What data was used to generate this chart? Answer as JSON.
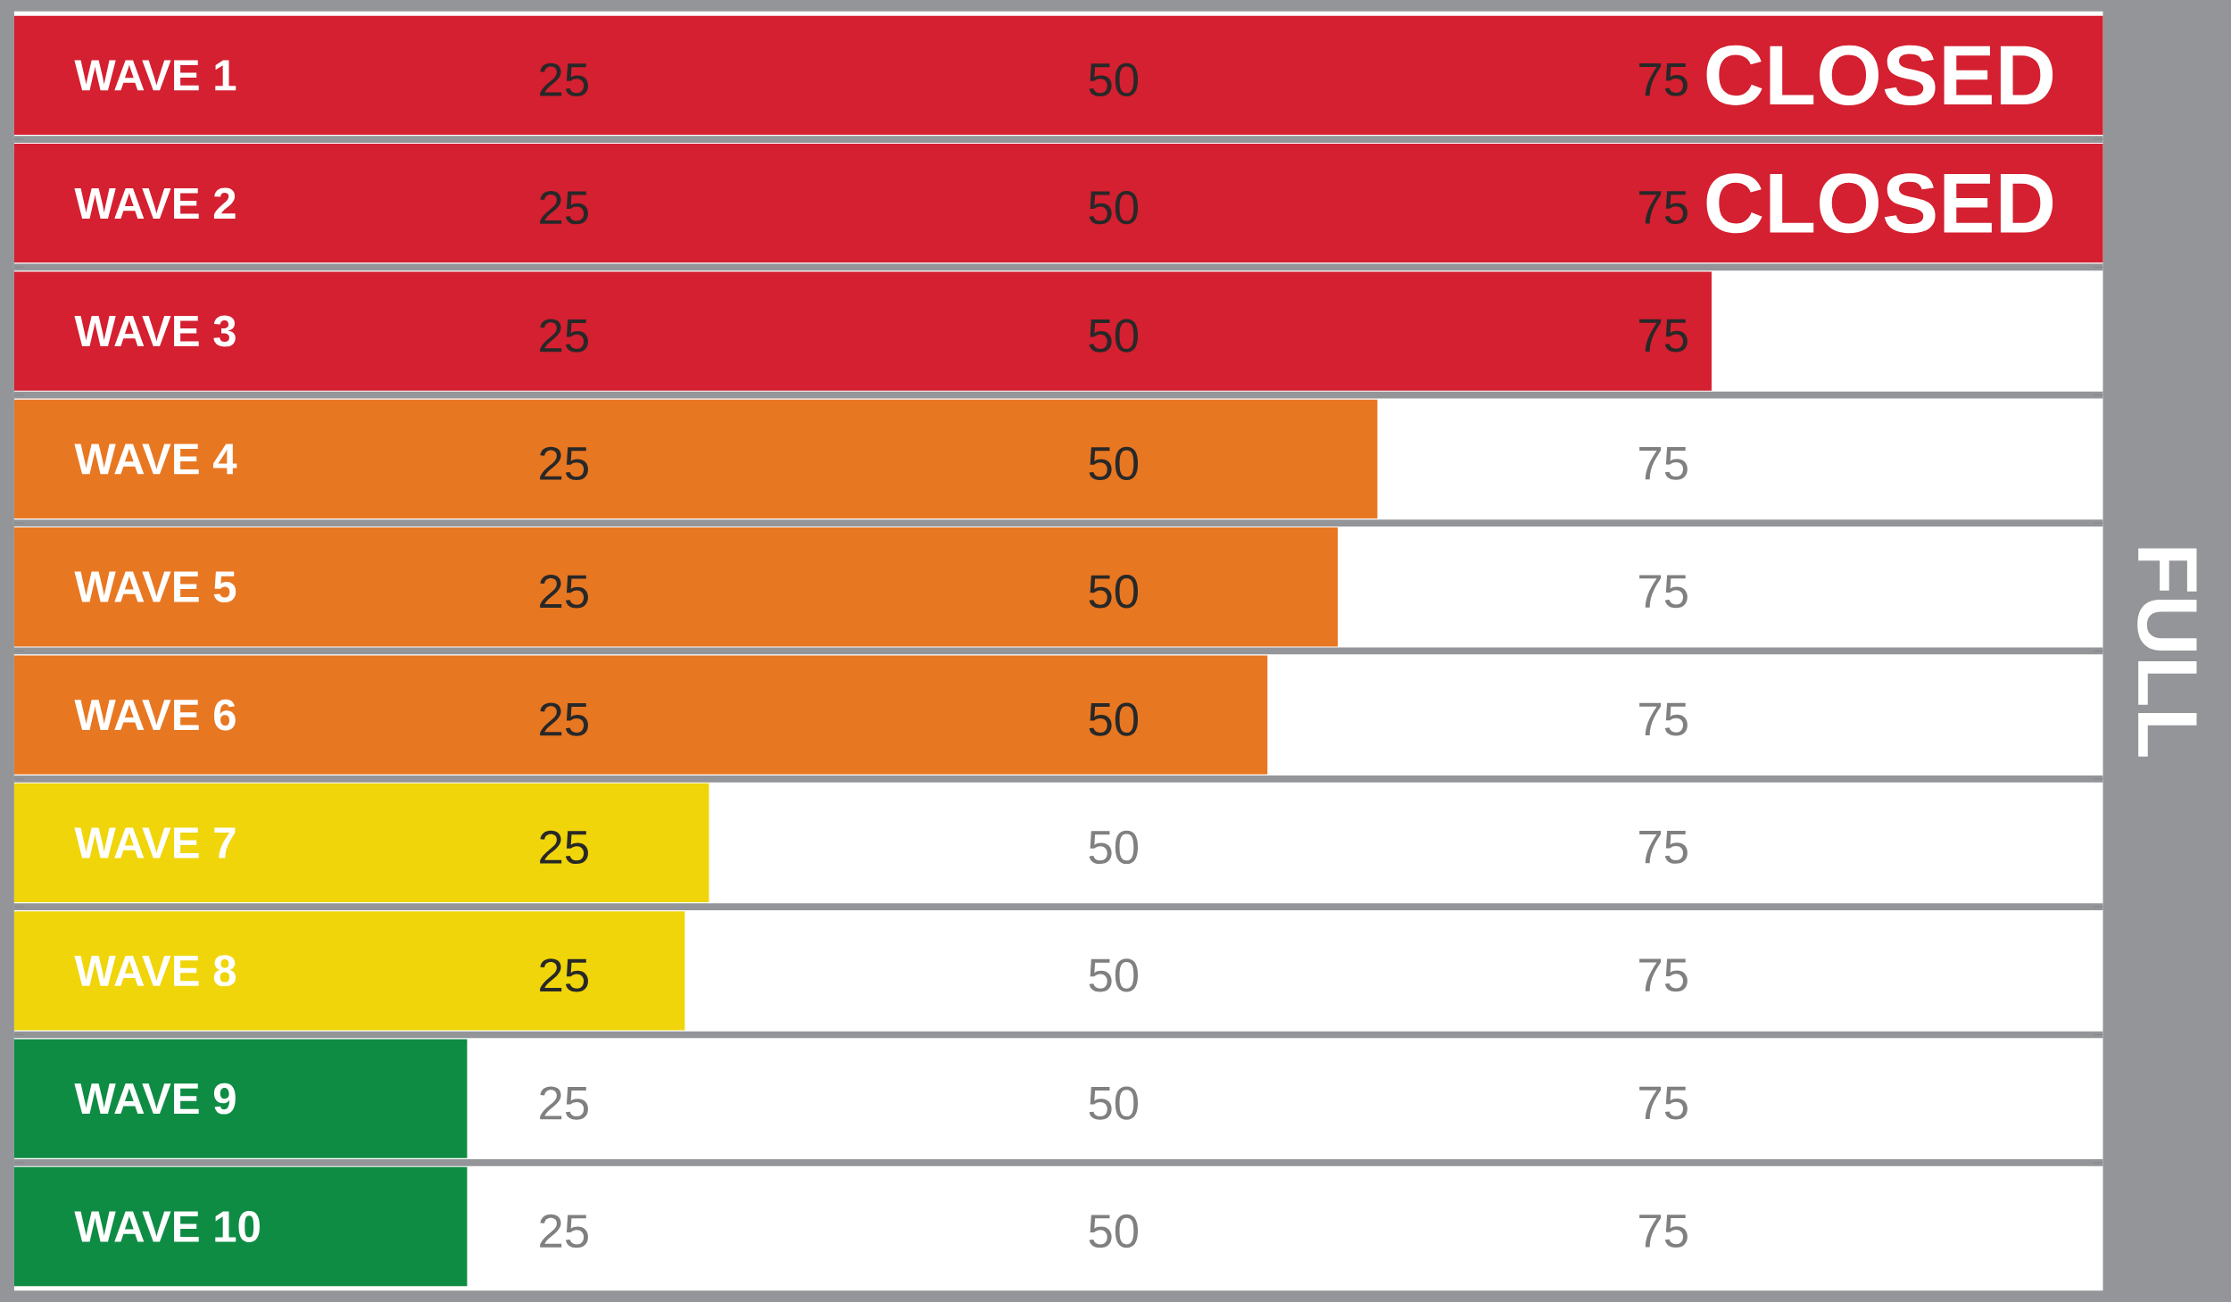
{
  "chart_data": {
    "type": "bar",
    "orientation": "horizontal",
    "categories": [
      "WAVE 1",
      "WAVE 2",
      "WAVE 3",
      "WAVE 4",
      "WAVE 5",
      "WAVE 6",
      "WAVE 7",
      "WAVE 8",
      "WAVE 9",
      "WAVE 10"
    ],
    "values": [
      95,
      95,
      77.2,
      62,
      60.2,
      57,
      31.6,
      30.5,
      20.6,
      20.6
    ],
    "colors": [
      "#d42030",
      "#d42030",
      "#d42030",
      "#e87722",
      "#e87722",
      "#e87722",
      "#f0d50a",
      "#f0d50a",
      "#0f8c44",
      "#0f8c44"
    ],
    "value_labels": [
      "CLOSED",
      "CLOSED",
      null,
      null,
      null,
      null,
      null,
      null,
      null,
      null
    ],
    "xlim": [
      0,
      95
    ],
    "xticks": [
      25,
      50,
      75
    ],
    "annotations": [
      "FULL",
      "25",
      "50",
      "75",
      "25",
      "50",
      "75",
      "25",
      "50",
      "75",
      "25",
      "50",
      "75",
      "25",
      "50",
      "75",
      "25",
      "50",
      "75",
      "25",
      "50",
      "75",
      "25",
      "50",
      "75",
      "25",
      "50",
      "75"
    ]
  }
}
